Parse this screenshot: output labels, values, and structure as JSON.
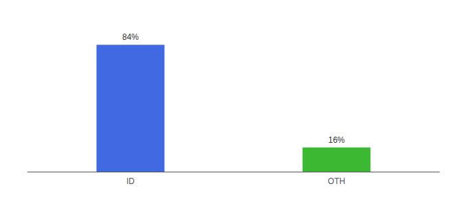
{
  "chart_data": {
    "type": "bar",
    "categories": [
      "ID",
      "OTH"
    ],
    "values": [
      84,
      16
    ],
    "value_labels": [
      "84%",
      "16%"
    ],
    "colors": [
      "#4169e1",
      "#3cb832"
    ],
    "ylim": [
      0,
      100
    ],
    "data_labels": true,
    "tick_labels": "x",
    "grid": false
  }
}
